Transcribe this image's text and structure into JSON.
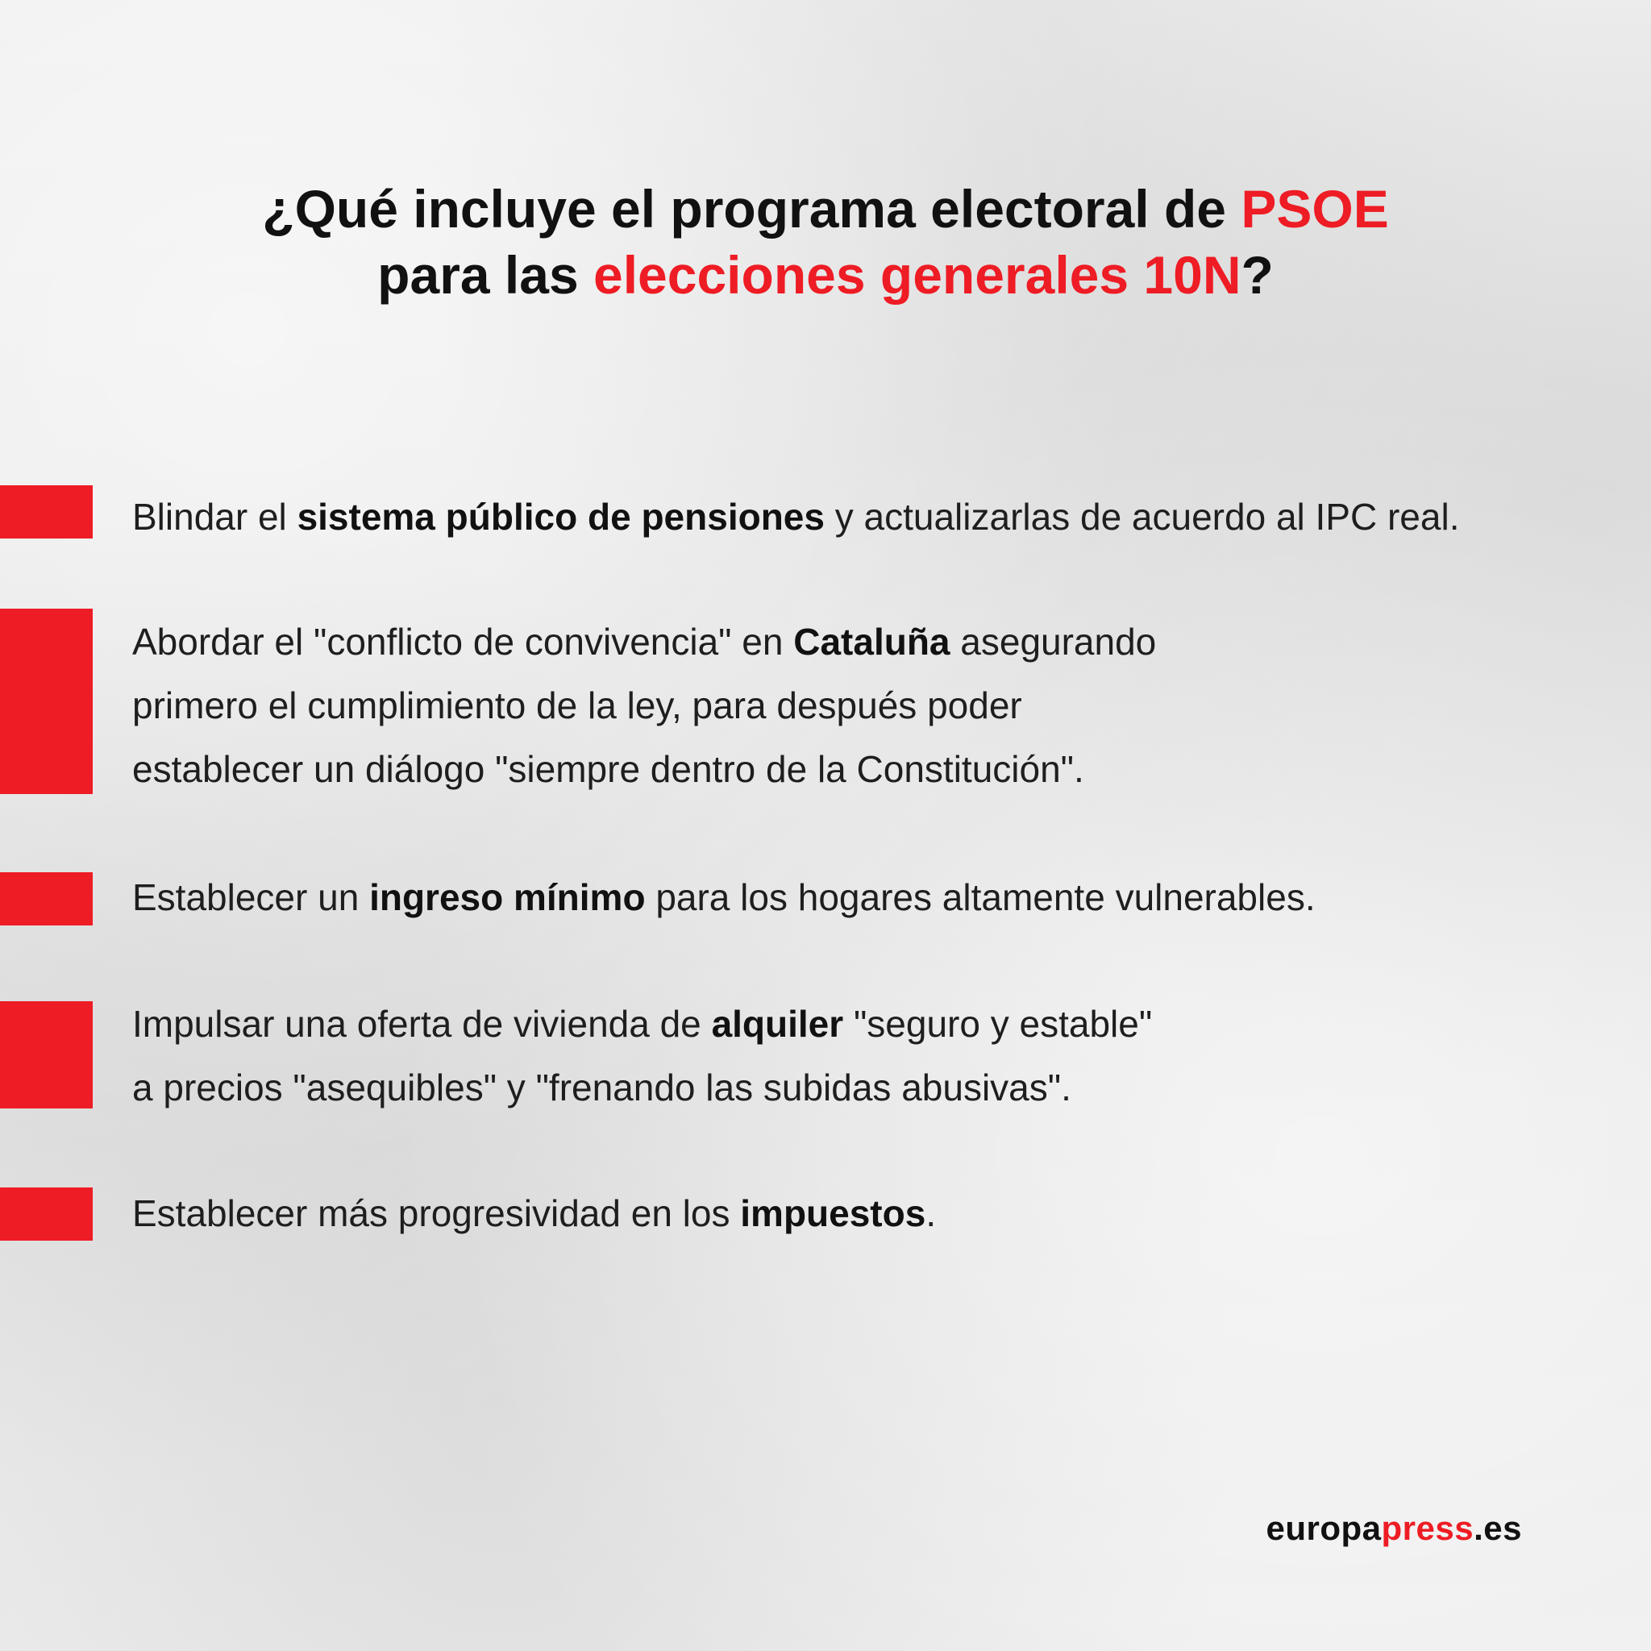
{
  "title": {
    "line1_prefix": "¿Qué incluye el programa electoral de ",
    "line1_highlight": "PSOE",
    "line2_prefix": "para las ",
    "line2_highlight": "elecciones generales 10N",
    "line2_suffix": "?"
  },
  "items": [
    {
      "t1": "Blindar el ",
      "b1": "sistema público de pensiones",
      "t2": " y actualizarlas de acuerdo al IPC real."
    },
    {
      "t1": "Abordar el \"conflicto de convivencia\" en ",
      "b1": "Cataluña",
      "t2": " asegurando",
      "line2": "primero el cumplimiento de la ley, para después poder",
      "line3": "establecer un diálogo \"siempre dentro de la Constitución\"."
    },
    {
      "t1": "Establecer un ",
      "b1": "ingreso mínimo",
      "t2": " para los hogares altamente vulnerables."
    },
    {
      "t1": "Impulsar una oferta de vivienda de ",
      "b1": "alquiler",
      "t2": " \"seguro y estable\"",
      "line2": "a precios \"asequibles\" y \"frenando las subidas abusivas\"."
    },
    {
      "t1": "Establecer más progresividad en los ",
      "b1": "impuestos",
      "t2": "."
    }
  ],
  "brand": {
    "part1": "europa",
    "part2": "press",
    "part3": ".es"
  },
  "colors": {
    "accent": "#ee1c24",
    "text": "#1e1e1e",
    "background": "#ebebeb"
  }
}
